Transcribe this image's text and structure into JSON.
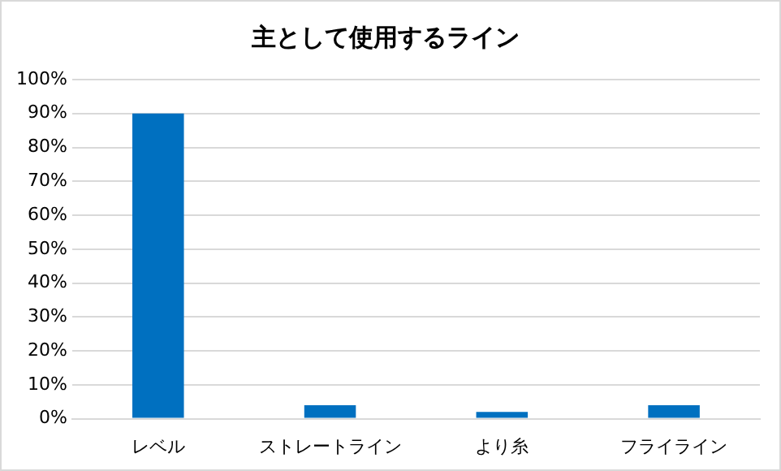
{
  "chart_data": {
    "type": "bar",
    "title": "主として使用するライン",
    "categories": [
      "レベル",
      "ストレートライン",
      "より糸",
      "フライライン"
    ],
    "values": [
      90,
      4,
      2,
      4
    ],
    "color": "#0070c0",
    "ylim": [
      0,
      100
    ],
    "yticks": [
      {
        "value": 0,
        "label": "0%"
      },
      {
        "value": 10,
        "label": "10%"
      },
      {
        "value": 20,
        "label": "20%"
      },
      {
        "value": 30,
        "label": "30%"
      },
      {
        "value": 40,
        "label": "40%"
      },
      {
        "value": 50,
        "label": "50%"
      },
      {
        "value": 60,
        "label": "60%"
      },
      {
        "value": 70,
        "label": "70%"
      },
      {
        "value": 80,
        "label": "80%"
      },
      {
        "value": 90,
        "label": "90%"
      },
      {
        "value": 100,
        "label": "100%"
      }
    ],
    "grid": "y",
    "legend": false
  }
}
